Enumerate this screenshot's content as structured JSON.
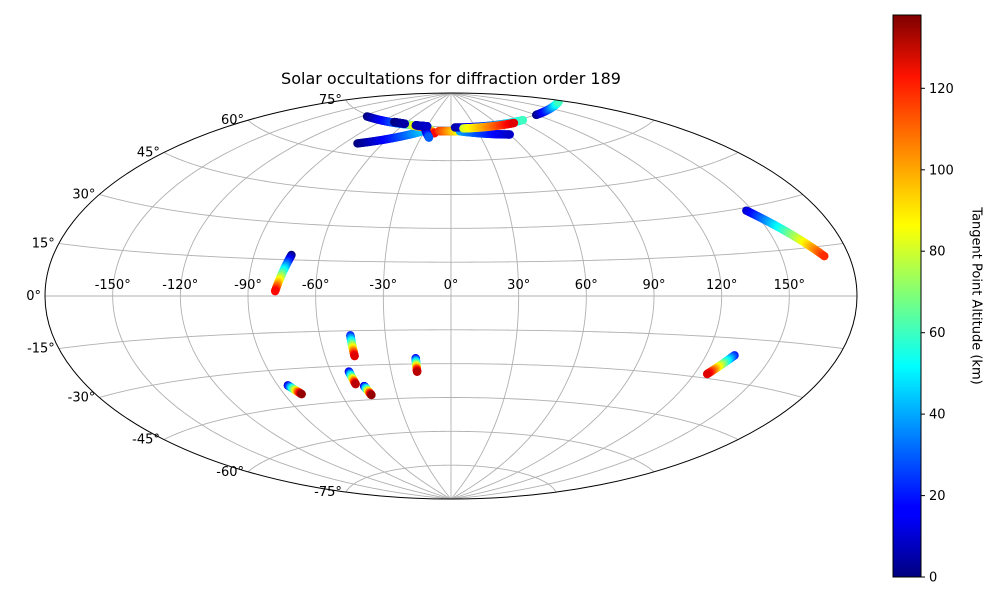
{
  "chart_data": {
    "type": "scatter",
    "projection": "aitoff",
    "title": "Solar occultations for diffraction order 189",
    "grid": true,
    "lon_ticks": [
      {
        "value": -150,
        "label": "-150°"
      },
      {
        "value": -120,
        "label": "-120°"
      },
      {
        "value": -90,
        "label": "-90°"
      },
      {
        "value": -60,
        "label": "-60°"
      },
      {
        "value": -30,
        "label": "-30°"
      },
      {
        "value": 0,
        "label": "0°"
      },
      {
        "value": 30,
        "label": "30°"
      },
      {
        "value": 60,
        "label": "60°"
      },
      {
        "value": 90,
        "label": "90°"
      },
      {
        "value": 120,
        "label": "120°"
      },
      {
        "value": 150,
        "label": "150°"
      }
    ],
    "lat_ticks": [
      {
        "value": 75,
        "label": "75°"
      },
      {
        "value": 60,
        "label": "60°"
      },
      {
        "value": 45,
        "label": "45°"
      },
      {
        "value": 30,
        "label": "30°"
      },
      {
        "value": 15,
        "label": "15°"
      },
      {
        "value": 0,
        "label": "0°"
      },
      {
        "value": -15,
        "label": "-15°"
      },
      {
        "value": -30,
        "label": "-30°"
      },
      {
        "value": -45,
        "label": "-45°"
      },
      {
        "value": -60,
        "label": "-60°"
      },
      {
        "value": -75,
        "label": "-75°"
      }
    ],
    "colorbar": {
      "label": "Tangent Point Altitude (km)",
      "min": 0,
      "max": 138,
      "colormap": "jet",
      "ticks": [
        {
          "value": 0,
          "label": "0"
        },
        {
          "value": 20,
          "label": "20"
        },
        {
          "value": 40,
          "label": "40"
        },
        {
          "value": 60,
          "label": "60"
        },
        {
          "value": 80,
          "label": "80"
        },
        {
          "value": 100,
          "label": "100"
        },
        {
          "value": 120,
          "label": "120"
        }
      ]
    },
    "tracks": [
      {
        "lon_start": -73,
        "lat_start": 17,
        "lon_end": -78,
        "lat_end": 2,
        "alt_start": 0,
        "alt_end": 120
      },
      {
        "lon_start": 147,
        "lat_start": 29,
        "lon_end": 169,
        "lat_end": 12,
        "alt_start": 10,
        "alt_end": 115
      },
      {
        "lon_start": 133,
        "lat_start": -21,
        "lon_end": 126,
        "lat_end": -28.5,
        "alt_start": 20,
        "alt_end": 125
      },
      {
        "lon_start": -46,
        "lat_start": -17,
        "lon_end": -46,
        "lat_end": -26,
        "alt_start": 20,
        "alt_end": 125
      },
      {
        "lon_start": -17,
        "lat_start": -27.5,
        "lon_end": -17,
        "lat_end": -33.5,
        "alt_start": 15,
        "alt_end": 130
      },
      {
        "lon_start": -51,
        "lat_start": -32.5,
        "lon_end": -50,
        "lat_end": -38,
        "alt_start": 10,
        "alt_end": 130
      },
      {
        "lon_start": -46,
        "lat_start": -39,
        "lon_end": -44,
        "lat_end": -43,
        "alt_start": 10,
        "alt_end": 135
      },
      {
        "lon_start": -85,
        "lat_start": -36.5,
        "lon_end": -81,
        "lat_end": -40.5,
        "alt_start": 10,
        "alt_end": 135
      },
      {
        "lon_start": -80,
        "lat_start": 64.5,
        "lon_end": -30,
        "lat_end": 73,
        "alt_start": 0,
        "alt_end": 45
      },
      {
        "lon_start": -115,
        "lat_start": 74.5,
        "lon_end": -55,
        "lat_end": 74.8,
        "alt_start": 0,
        "alt_end": 40
      },
      {
        "lon_start": -55,
        "lat_start": 74.8,
        "lon_end": -28,
        "lat_end": 74.3,
        "alt_start": 60,
        "alt_end": 130
      },
      {
        "lon_start": -28,
        "lat_start": 74.3,
        "lon_end": -18,
        "lat_end": 72,
        "alt_start": 40,
        "alt_end": 120
      },
      {
        "lon_start": -30,
        "lat_start": 73.5,
        "lon_end": -22,
        "lat_end": 70,
        "alt_start": 0,
        "alt_end": 30
      },
      {
        "lon_start": -14,
        "lat_start": 73,
        "lon_end": 35,
        "lat_end": 73,
        "alt_start": 115,
        "alt_end": 55
      },
      {
        "lon_start": 10,
        "lat_start": 73,
        "lon_end": 60,
        "lat_end": 70,
        "alt_start": 40,
        "alt_end": 10
      },
      {
        "lon_start": 5,
        "lat_start": 74.7,
        "lon_end": 95,
        "lat_end": 74.5,
        "alt_start": 5,
        "alt_end": 60
      },
      {
        "lon_start": 15,
        "lat_start": 74.2,
        "lon_end": 80,
        "lat_end": 74.2,
        "alt_start": 80,
        "alt_end": 125
      },
      {
        "lon_start": -45,
        "lat_start": 74.9,
        "lon_end": -30,
        "lat_end": 74.9,
        "alt_start": 5,
        "alt_end": 10
      },
      {
        "lon_start": -75,
        "lat_start": 75,
        "lon_end": -60,
        "lat_end": 75,
        "alt_start": 0,
        "alt_end": 5
      },
      {
        "lon_start": 120,
        "lat_start": 74.8,
        "lon_end": 175,
        "lat_end": 74.5,
        "alt_start": 0,
        "alt_end": 60
      }
    ]
  }
}
